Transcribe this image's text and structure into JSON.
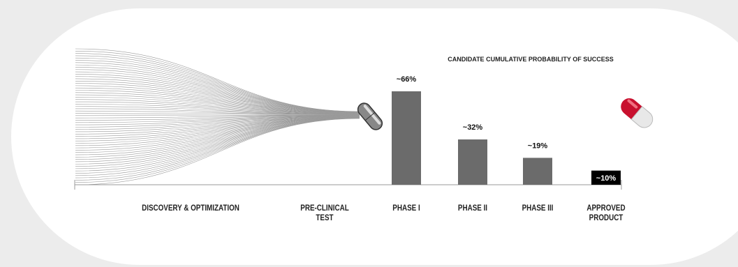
{
  "chart_data": {
    "type": "bar",
    "title": "CANDIDATE CUMULATIVE PROBABILITY OF SUCCESS",
    "categories": [
      "DISCOVERY & OPTIMIZATION",
      "PRE-CLINICAL TEST",
      "PHASE I",
      "PHASE II",
      "PHASE III",
      "APPROVED PRODUCT"
    ],
    "values": [
      null,
      null,
      66,
      32,
      19,
      10
    ],
    "value_labels": [
      null,
      null,
      "~66%",
      "~32%",
      "~19%",
      "~10%"
    ],
    "colors": [
      null,
      null,
      "#6b6b6b",
      "#6b6b6b",
      "#6b6b6b",
      "#000000"
    ]
  }
}
